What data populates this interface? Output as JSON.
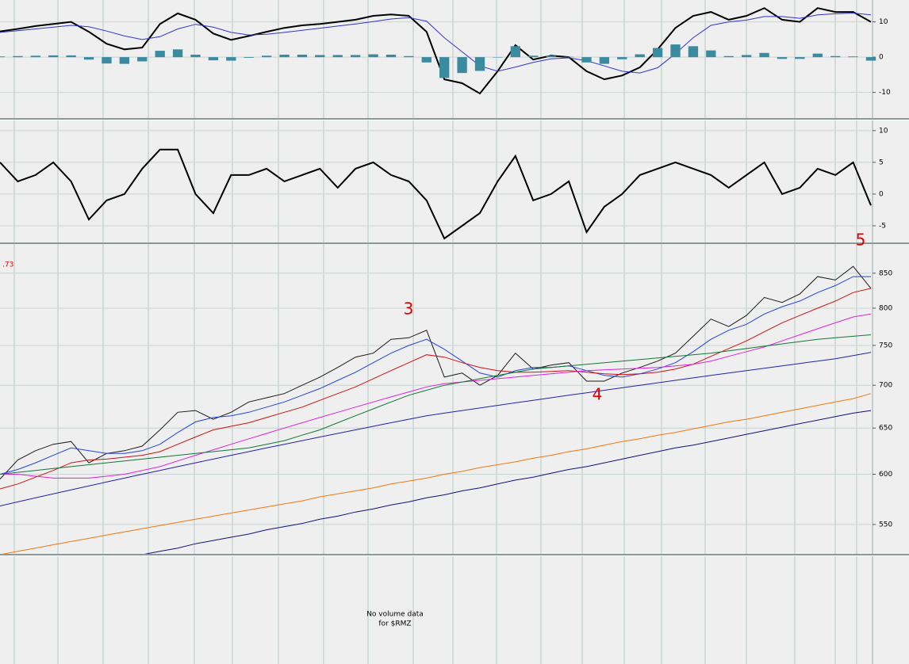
{
  "chart_data": [
    {
      "type": "line",
      "ylim": [
        -17.5,
        16.2
      ],
      "yticks": [
        10,
        0,
        -10
      ],
      "grid": true,
      "series": [
        {
          "color": "#000000",
          "values": [
            7.3,
            8,
            8.8,
            9.4,
            10,
            7.2,
            3.8,
            2.2,
            2.7,
            9.4,
            12.4,
            10.6,
            6.7,
            4.9,
            6,
            7.2,
            8.3,
            9,
            9.4,
            10,
            10.6,
            11.7,
            12.1,
            11.7,
            7.2,
            -6.3,
            -7.4,
            -10.3,
            -4,
            3.4,
            -0.7,
            0.4,
            0,
            -4,
            -6.3,
            -5.2,
            -2.9,
            2.2,
            8.3,
            11.7,
            12.8,
            10.6,
            11.7,
            13.9,
            10.6,
            10,
            13.9,
            12.8,
            12.8,
            10
          ]
        },
        {
          "color": "#3333cc",
          "values": [
            7,
            7.5,
            8,
            8.5,
            9,
            8.6,
            7.4,
            6,
            5,
            5.8,
            8,
            9.3,
            8.5,
            7,
            6.3,
            6.5,
            7,
            7.6,
            8.2,
            8.8,
            9.4,
            10.1,
            10.8,
            11.2,
            10.2,
            5.5,
            1.5,
            -2.5,
            -4,
            -2.8,
            -1.5,
            -0.5,
            -0.2,
            -1,
            -2.5,
            -4,
            -4.5,
            -3,
            1,
            5.5,
            9,
            10,
            10.5,
            11.5,
            11.5,
            11,
            12,
            12.3,
            12.5,
            12
          ]
        },
        {
          "type": "bar",
          "color": "#3a8aa0",
          "values": [
            0.2,
            0.3,
            0.4,
            0.5,
            0.5,
            -0.7,
            -1.8,
            -1.9,
            -1.2,
            1.8,
            2.2,
            0.7,
            -0.9,
            -1,
            -0.2,
            0.4,
            0.7,
            0.7,
            0.6,
            0.6,
            0.6,
            0.8,
            0.7,
            0.3,
            -1.5,
            -5.9,
            -4.5,
            -3.9,
            0,
            3.1,
            0.4,
            0.4,
            0.1,
            -1.5,
            -1.9,
            -0.6,
            0.8,
            2.6,
            3.6,
            3.1,
            1.9,
            0.3,
            0.6,
            1.2,
            -0.5,
            -0.5,
            1,
            0.3,
            0.2,
            -1
          ]
        }
      ]
    },
    {
      "type": "line",
      "ylim": [
        -7.75,
        11.6
      ],
      "yticks": [
        10,
        5,
        0,
        -5
      ],
      "grid": true,
      "series": [
        {
          "color": "#000000",
          "values": [
            5,
            2,
            3,
            5,
            2,
            -4,
            -1,
            0,
            4,
            7,
            7,
            0,
            -3,
            3,
            3,
            4,
            2,
            3,
            4,
            1,
            4,
            5,
            3,
            2,
            -1,
            -7,
            -5,
            -3,
            2,
            6,
            -1,
            0,
            2,
            -6,
            -2,
            0,
            3,
            4,
            5,
            4,
            3,
            1,
            3,
            5,
            0,
            1,
            4,
            3,
            5,
            -1.8
          ]
        }
      ]
    },
    {
      "type": "line",
      "log": true,
      "ylim": [
        522,
        894
      ],
      "yticks": [
        850,
        800,
        750,
        700,
        650,
        600,
        550
      ],
      "grid": true,
      "annotations": [
        ".73",
        "3",
        "4",
        "5"
      ],
      "series": [
        {
          "color": "#1a1a1a",
          "values": [
            595,
            615,
            625,
            632,
            635,
            612,
            622,
            625,
            630,
            648,
            668,
            670,
            660,
            668,
            680,
            685,
            690,
            700,
            710,
            722,
            735,
            740,
            758,
            760,
            770,
            710,
            715,
            700,
            712,
            740,
            720,
            725,
            728,
            705,
            705,
            715,
            722,
            730,
            740,
            762,
            785,
            775,
            790,
            815,
            808,
            820,
            845,
            840,
            860,
            828
          ]
        },
        {
          "color": "#2244dd",
          "values": [
            600,
            605,
            612,
            620,
            628,
            625,
            622,
            622,
            625,
            632,
            645,
            657,
            662,
            664,
            668,
            674,
            680,
            688,
            696,
            706,
            716,
            728,
            740,
            750,
            758,
            745,
            730,
            715,
            710,
            718,
            722,
            722,
            724,
            718,
            712,
            710,
            714,
            720,
            728,
            742,
            758,
            770,
            778,
            792,
            802,
            810,
            822,
            832,
            845,
            845
          ]
        },
        {
          "color": "#cc1111",
          "values": [
            585,
            590,
            597,
            604,
            612,
            615,
            616,
            618,
            620,
            624,
            632,
            640,
            648,
            652,
            656,
            662,
            668,
            674,
            682,
            690,
            698,
            708,
            718,
            728,
            738,
            735,
            728,
            722,
            718,
            716,
            716,
            717,
            718,
            716,
            714,
            713,
            714,
            716,
            720,
            726,
            736,
            746,
            756,
            768,
            780,
            790,
            800,
            810,
            822,
            828
          ]
        },
        {
          "color": "#dd22dd",
          "values": [
            600,
            600,
            598,
            596,
            596,
            596,
            598,
            600,
            604,
            608,
            614,
            620,
            626,
            632,
            638,
            644,
            650,
            656,
            662,
            668,
            674,
            680,
            686,
            692,
            698,
            702,
            704,
            706,
            708,
            710,
            712,
            714,
            716,
            718,
            719,
            720,
            721,
            722,
            724,
            726,
            730,
            736,
            742,
            748,
            756,
            764,
            772,
            780,
            788,
            792
          ]
        },
        {
          "color": "#117733",
          "values": [
            600,
            602,
            604,
            606,
            608,
            610,
            612,
            614,
            616,
            618,
            620,
            622,
            624,
            626,
            628,
            632,
            636,
            642,
            648,
            656,
            664,
            672,
            680,
            688,
            694,
            700,
            704,
            708,
            712,
            716,
            720,
            722,
            724,
            726,
            728,
            730,
            732,
            734,
            736,
            738,
            740,
            743,
            746,
            749,
            752,
            755,
            758,
            760,
            762,
            764
          ]
        },
        {
          "color": "#2222aa",
          "values": [
            568,
            572,
            576,
            580,
            584,
            588,
            592,
            596,
            600,
            604,
            608,
            612,
            616,
            620,
            624,
            628,
            632,
            636,
            640,
            644,
            648,
            652,
            656,
            660,
            664,
            667,
            670,
            673,
            676,
            679,
            682,
            685,
            688,
            691,
            694,
            697,
            700,
            703,
            706,
            709,
            712,
            715,
            718,
            721,
            724,
            727,
            730,
            733,
            737,
            741
          ]
        },
        {
          "color": "#ee7711",
          "values": [
            522,
            525,
            528,
            531,
            534,
            537,
            540,
            543,
            546,
            549,
            552,
            555,
            558,
            561,
            564,
            567,
            570,
            573,
            577,
            580,
            583,
            586,
            590,
            593,
            596,
            600,
            603,
            607,
            610,
            613,
            617,
            620,
            624,
            627,
            631,
            635,
            638,
            642,
            645,
            649,
            653,
            657,
            660,
            664,
            668,
            672,
            676,
            680,
            684,
            690
          ]
        },
        {
          "color": "#11117a",
          "values": [
            null,
            null,
            null,
            null,
            null,
            null,
            null,
            null,
            522,
            525,
            528,
            532,
            535,
            538,
            541,
            545,
            548,
            551,
            555,
            558,
            562,
            565,
            569,
            572,
            576,
            579,
            583,
            586,
            590,
            594,
            597,
            601,
            605,
            608,
            612,
            616,
            620,
            624,
            628,
            631,
            635,
            639,
            643,
            647,
            651,
            655,
            659,
            663,
            667,
            670
          ]
        }
      ]
    },
    {
      "type": "text",
      "lines": [
        "No volume data",
        "for $RMZ"
      ]
    }
  ]
}
